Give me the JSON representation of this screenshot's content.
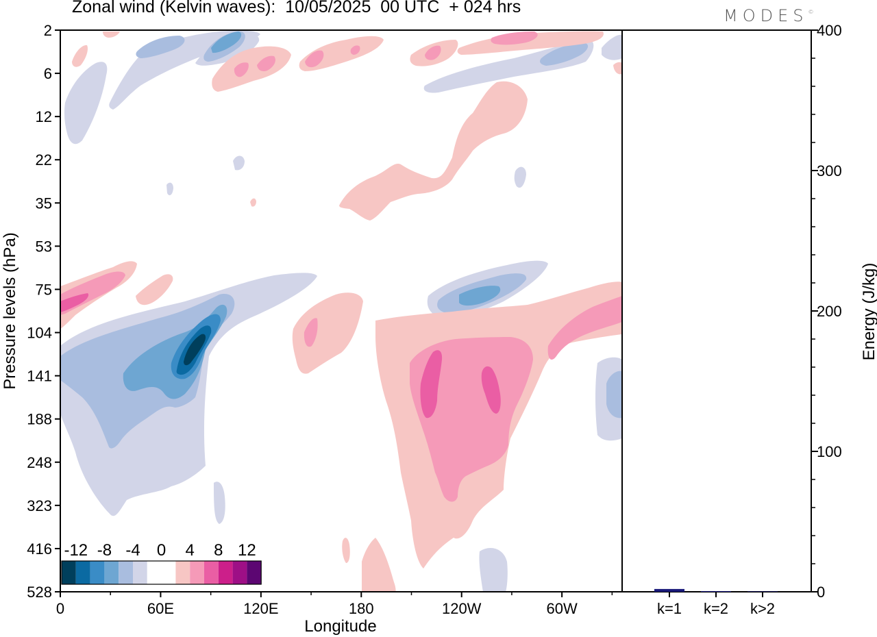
{
  "title": "Zonal wind (Kelvin waves):  10/05/2025  00 UTC  + 024 hrs",
  "logo": "MODES",
  "colors": {
    "neg": [
      "#003f5c",
      "#0b6aa2",
      "#3a8cc6",
      "#6ea6d2",
      "#a9bddf",
      "#d2d5e8"
    ],
    "zero": "#ffffff",
    "pos": [
      "#f7c6c4",
      "#f59ab8",
      "#ea5ea4",
      "#cc1f8a",
      "#9e0f86",
      "#5c0672"
    ],
    "bar": "#1a1a7a"
  },
  "chart_data": [
    {
      "type": "heatmap",
      "title": "Zonal wind (Kelvin waves):  10/05/2025  00 UTC  + 024 hrs",
      "xlabel": "Longitude",
      "ylabel": "Pressure levels (hPa)",
      "x_ticks": [
        "0",
        "60E",
        "120E",
        "180",
        "120W",
        "60W"
      ],
      "x_tick_values": [
        0,
        60,
        120,
        180,
        240,
        300
      ],
      "xlim": [
        0,
        336
      ],
      "y_ticks": [
        2,
        6,
        12,
        22,
        35,
        53,
        75,
        104,
        141,
        188,
        248,
        323,
        416,
        528
      ],
      "y_scale": "log-pressure, reversed",
      "colorbar": {
        "labels": [
          "-12",
          "-8",
          "-4",
          "0",
          "4",
          "8",
          "12"
        ],
        "levels": [
          -12,
          -10,
          -8,
          -6,
          -4,
          -2,
          0,
          2,
          4,
          6,
          8,
          10,
          12
        ],
        "placement": "bottom-left"
      },
      "features": [
        {
          "lon": 82,
          "p": 120,
          "value": -12
        },
        {
          "lon": 65,
          "p": 130,
          "value": -8
        },
        {
          "lon": 20,
          "p": 140,
          "value": -4
        },
        {
          "lon": 105,
          "p": 10,
          "value": -6
        },
        {
          "lon": 240,
          "p": 150,
          "value": 8
        },
        {
          "lon": 265,
          "p": 150,
          "value": 8
        },
        {
          "lon": 325,
          "p": 95,
          "value": 6
        },
        {
          "lon": 10,
          "p": 85,
          "value": 6
        },
        {
          "lon": 120,
          "p": 7,
          "value": 6
        },
        {
          "lon": 260,
          "p": 90,
          "value": -4
        },
        {
          "lon": 210,
          "p": 25,
          "value": 2
        }
      ]
    },
    {
      "type": "bar",
      "categories": [
        "k=1",
        "k=2",
        "k>2"
      ],
      "values": [
        2,
        0.5,
        0.3
      ],
      "ylabel": "Energy (J/kg)",
      "ylim": [
        0,
        400
      ],
      "y_ticks": [
        0,
        100,
        200,
        300,
        400
      ]
    }
  ]
}
